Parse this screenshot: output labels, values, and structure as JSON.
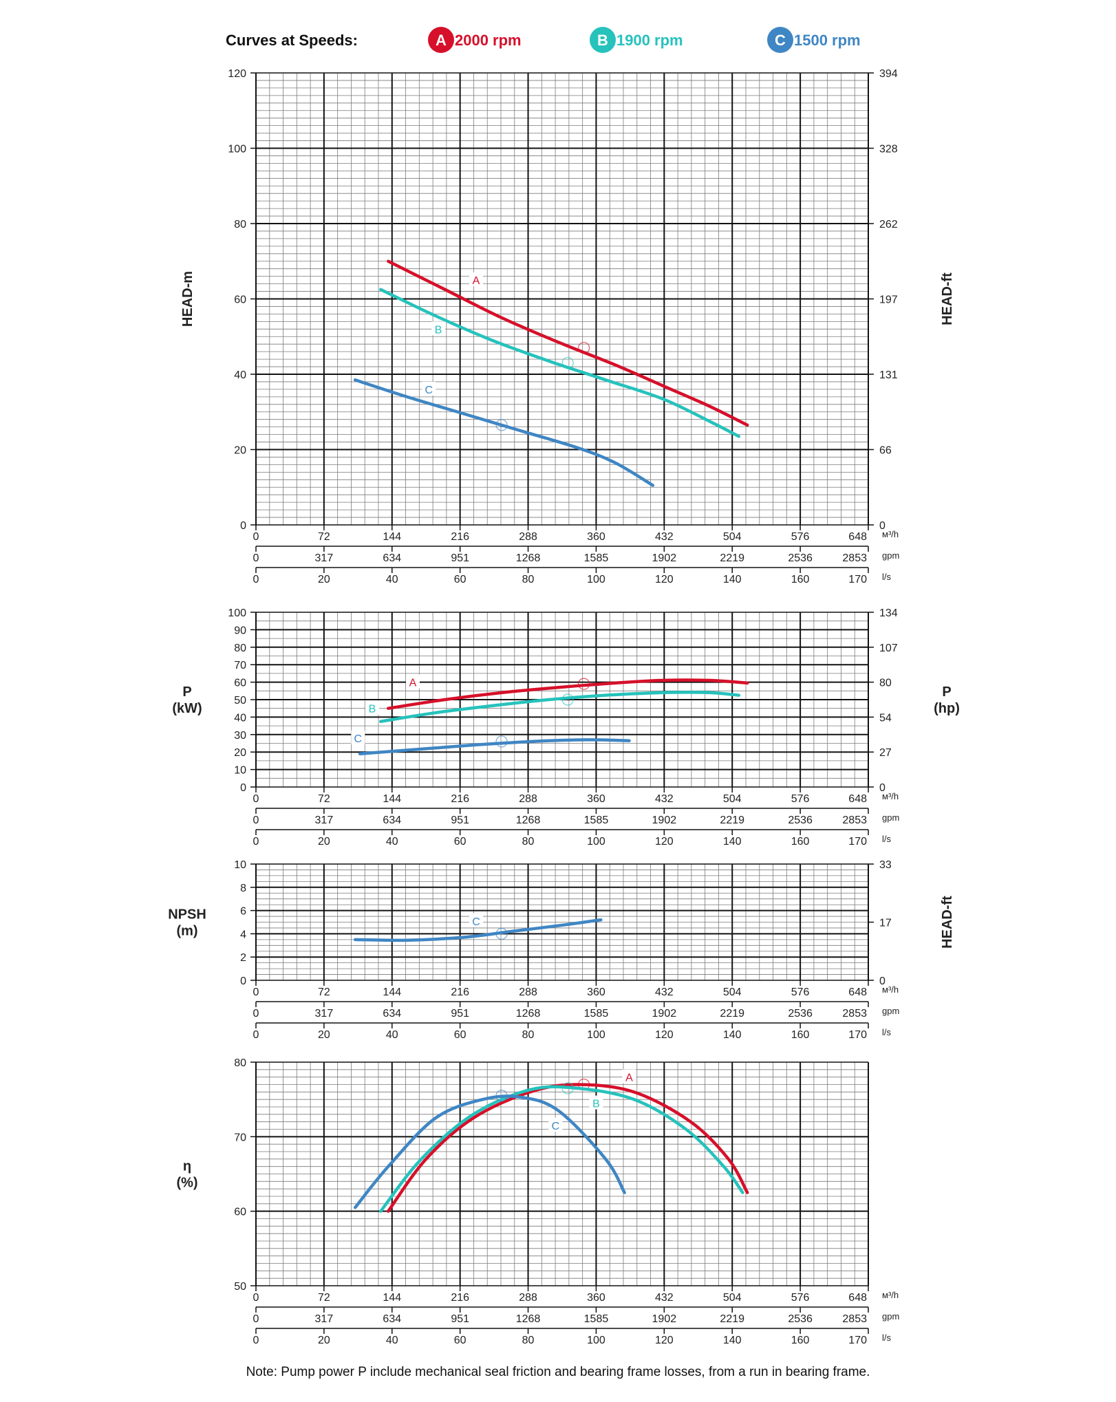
{
  "legend": {
    "title": "Curves at Speeds:",
    "items": [
      {
        "letter": "A",
        "label": "2000 rpm",
        "color": "#d6102a"
      },
      {
        "letter": "B",
        "label": "1900 rpm",
        "color": "#26c2bc"
      },
      {
        "letter": "C",
        "label": "1500 rpm",
        "color": "#3f86c4"
      }
    ]
  },
  "x_axis": {
    "m3h": {
      "unit": "м³/h",
      "ticks": [
        "0",
        "72",
        "144",
        "216",
        "288",
        "360",
        "432",
        "504",
        "576",
        "648"
      ]
    },
    "gpm": {
      "unit": "gpm",
      "ticks": [
        "0",
        "317",
        "634",
        "951",
        "1268",
        "1585",
        "1902",
        "2219",
        "2536",
        "2853"
      ]
    },
    "ls": {
      "unit": "l/s",
      "ticks": [
        "0",
        "20",
        "40",
        "60",
        "80",
        "100",
        "120",
        "140",
        "160",
        "170"
      ]
    },
    "range_m3h": [
      0,
      648
    ]
  },
  "note": "Note: Pump power P include mechanical seal friction and bearing frame losses, from a run in bearing frame.",
  "chart_data": [
    {
      "type": "line",
      "id": "head",
      "ylabel": "HEAD-m",
      "ylabel_right": "HEAD-ft",
      "ylim": [
        0,
        120
      ],
      "yticks": [
        "0",
        "20",
        "40",
        "60",
        "80",
        "100",
        "120"
      ],
      "yticks_right": [
        "0",
        "66",
        "131",
        "197",
        "262",
        "328",
        "394"
      ],
      "grid": true,
      "series": [
        {
          "name": "A",
          "color": "#d6102a",
          "x": [
            140,
            200,
            260,
            320,
            380,
            430,
            480,
            520
          ],
          "y": [
            70,
            62.5,
            55,
            48.5,
            42.5,
            37,
            31.5,
            26.5
          ],
          "label_at": [
            233,
            65
          ],
          "marker": [
            347,
            47
          ]
        },
        {
          "name": "B",
          "color": "#26c2bc",
          "x": [
            132,
            190,
            250,
            310,
            370,
            430,
            480,
            511
          ],
          "y": [
            62.5,
            55.5,
            49,
            43.5,
            38.5,
            33.5,
            27.5,
            23.5
          ],
          "label_at": [
            193,
            52
          ],
          "marker": [
            330,
            43
          ]
        },
        {
          "name": "C",
          "color": "#3f86c4",
          "x": [
            105,
            160,
            220,
            280,
            340,
            380,
            420
          ],
          "y": [
            38.5,
            34,
            29.5,
            25,
            20.5,
            16.5,
            10.5
          ],
          "label_at": [
            183,
            36
          ],
          "marker": [
            260,
            26.5
          ]
        }
      ]
    },
    {
      "type": "line",
      "id": "power",
      "ylabel": "P\n(kW)",
      "ylabel_right": "P\n(hp)",
      "ylim": [
        0,
        100
      ],
      "yticks": [
        "0",
        "10",
        "20",
        "30",
        "40",
        "50",
        "60",
        "70",
        "80",
        "90",
        "100"
      ],
      "yticks_right": [
        "0",
        "27",
        "54",
        "80",
        "107",
        "134"
      ],
      "yticks_right_values": [
        0,
        20,
        40,
        60,
        80,
        100
      ],
      "grid": true,
      "series": [
        {
          "name": "A",
          "color": "#d6102a",
          "x": [
            140,
            200,
            260,
            320,
            380,
            430,
            480,
            520
          ],
          "y": [
            45,
            50,
            54,
            57,
            59.5,
            61,
            61,
            59.5
          ],
          "label_at": [
            166,
            60
          ],
          "marker": [
            347,
            59
          ]
        },
        {
          "name": "B",
          "color": "#26c2bc",
          "x": [
            132,
            190,
            250,
            310,
            370,
            430,
            480,
            511
          ],
          "y": [
            37.5,
            42.5,
            46.5,
            50,
            52.5,
            54,
            54,
            52.5
          ],
          "label_at": [
            123,
            45
          ],
          "marker": [
            330,
            50
          ]
        },
        {
          "name": "C",
          "color": "#3f86c4",
          "x": [
            110,
            170,
            230,
            290,
            350,
            395
          ],
          "y": [
            19,
            21.5,
            24,
            26,
            27,
            26.5
          ],
          "label_at": [
            108,
            28
          ],
          "marker": [
            260,
            26
          ]
        }
      ]
    },
    {
      "type": "line",
      "id": "npsh",
      "ylabel": "NPSH\n(m)",
      "ylabel_right": "HEAD-ft",
      "ylim": [
        0,
        10
      ],
      "yticks": [
        "0",
        "2",
        "4",
        "6",
        "8",
        "10"
      ],
      "yticks_right": [
        "0",
        "17",
        "33"
      ],
      "yticks_right_values": [
        0,
        5,
        10
      ],
      "grid": true,
      "series": [
        {
          "name": "C",
          "color": "#3f86c4",
          "x": [
            105,
            160,
            220,
            270,
            320,
            365
          ],
          "y": [
            3.5,
            3.45,
            3.7,
            4.2,
            4.7,
            5.2
          ],
          "label_at": [
            233,
            5.1
          ],
          "marker": [
            260,
            4
          ]
        }
      ]
    },
    {
      "type": "line",
      "id": "efficiency",
      "ylabel": "η\n(%)",
      "ylim": [
        50,
        80
      ],
      "yticks": [
        "50",
        "60",
        "70",
        "80"
      ],
      "grid": true,
      "series": [
        {
          "name": "A",
          "color": "#d6102a",
          "x": [
            140,
            180,
            230,
            290,
            340,
            400,
            460,
            500,
            520
          ],
          "y": [
            60,
            67,
            72.5,
            76,
            77,
            76,
            72,
            67,
            62.5
          ],
          "label_at": [
            395,
            78
          ],
          "marker": [
            347,
            77
          ]
        },
        {
          "name": "B",
          "color": "#26c2bc",
          "x": [
            132,
            175,
            230,
            290,
            340,
            400,
            455,
            495,
            515
          ],
          "y": [
            60,
            67,
            73,
            76.3,
            76.5,
            75,
            71,
            66,
            62.5
          ],
          "label_at": [
            360,
            74.5
          ],
          "marker": [
            330,
            76.5
          ]
        },
        {
          "name": "C",
          "color": "#3f86c4",
          "x": [
            105,
            140,
            190,
            240,
            280,
            320,
            370,
            390
          ],
          "y": [
            60.5,
            66,
            72.5,
            75,
            75.3,
            73.5,
            67,
            62.5
          ],
          "label_at": [
            317,
            71.5
          ],
          "marker": [
            260,
            75.5
          ]
        }
      ]
    }
  ]
}
